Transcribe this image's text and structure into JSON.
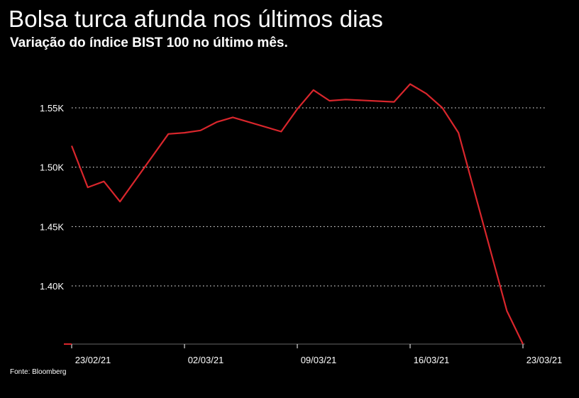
{
  "title": "Bolsa turca afunda nos últimos dias",
  "subtitle": "Variação do índice BIST 100 no último mês.",
  "source": "Fonte: Bloomberg",
  "colors": {
    "background": "#000000",
    "line": "#d9262c",
    "text": "#ffffff",
    "grid": "#ffffff"
  },
  "chart_data": {
    "type": "line",
    "title": "Bolsa turca afunda nos últimos dias",
    "subtitle": "Variação do índice BIST 100 no último mês.",
    "xlabel": "",
    "ylabel": "",
    "x_tick_labels": [
      "23/02/21",
      "02/03/21",
      "09/03/21",
      "16/03/21",
      "23/03/21"
    ],
    "y_tick_values": [
      1400,
      1450,
      1500,
      1550
    ],
    "y_tick_labels": [
      "1.40K",
      "1.45K",
      "1.50K",
      "1.55K"
    ],
    "ylim": [
      1350,
      1600
    ],
    "grid": "horizontal-dotted",
    "legend": "none",
    "series": [
      {
        "points": [
          [
            "23/02/21",
            1518
          ],
          [
            "24/02/21",
            1483
          ],
          [
            "25/02/21",
            1488
          ],
          [
            "26/02/21",
            1471
          ],
          [
            "01/03/21",
            1528
          ],
          [
            "02/03/21",
            1529
          ],
          [
            "03/03/21",
            1531
          ],
          [
            "04/03/21",
            1538
          ],
          [
            "05/03/21",
            1542
          ],
          [
            "08/03/21",
            1530
          ],
          [
            "09/03/21",
            1549
          ],
          [
            "10/03/21",
            1565
          ],
          [
            "11/03/21",
            1556
          ],
          [
            "12/03/21",
            1557
          ],
          [
            "15/03/21",
            1555
          ],
          [
            "16/03/21",
            1570
          ],
          [
            "17/03/21",
            1562
          ],
          [
            "18/03/21",
            1550
          ],
          [
            "19/03/21",
            1529
          ],
          [
            "22/03/21",
            1379
          ],
          [
            "23/03/21",
            1351
          ]
        ]
      }
    ]
  }
}
